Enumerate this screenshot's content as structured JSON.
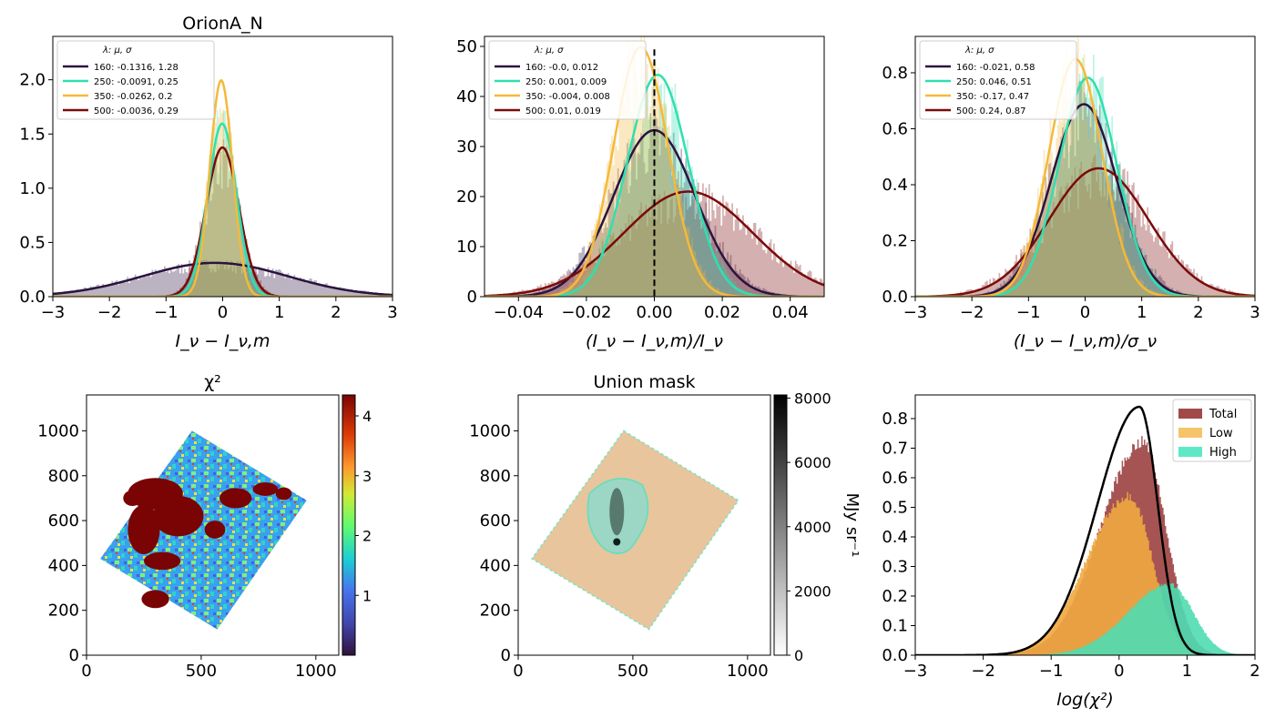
{
  "figure": {
    "panels_title_top_left": "OrionA_N"
  },
  "chart_data": [
    {
      "id": "p1",
      "type": "histogram",
      "title": "OrionA_N",
      "xlabel": "I_ν − I_ν,m",
      "xlim": [
        -3,
        3
      ],
      "ylim": [
        0,
        2.4
      ],
      "xticks": [
        "−3",
        "−2",
        "−1",
        "0",
        "1",
        "2",
        "3"
      ],
      "xtick_values": [
        -3,
        -2,
        -1,
        0,
        1,
        2,
        3
      ],
      "yticks": [
        "0.0",
        "0.5",
        "1.0",
        "1.5",
        "2.0"
      ],
      "ytick_values": [
        0,
        0.5,
        1.0,
        1.5,
        2.0
      ],
      "legend_header": "λ:        μ,        σ",
      "legend": [
        "160: -0.1316,  1.28",
        "250: -0.0091,  0.25",
        "350: -0.0262,  0.2",
        "500: -0.0036,  0.29"
      ],
      "series": [
        {
          "lambda": 160,
          "mu": -0.1316,
          "sigma": 1.28,
          "color": "#2b1340"
        },
        {
          "lambda": 250,
          "mu": -0.0091,
          "sigma": 0.25,
          "color": "#2ee0b0"
        },
        {
          "lambda": 350,
          "mu": -0.0262,
          "sigma": 0.2,
          "color": "#f5b93a"
        },
        {
          "lambda": 500,
          "mu": -0.0036,
          "sigma": 0.29,
          "color": "#7a0a0a"
        }
      ]
    },
    {
      "id": "p2",
      "type": "histogram",
      "title": "",
      "xlabel": "(I_ν − I_ν,m)/I_ν",
      "xlim": [
        -0.05,
        0.05
      ],
      "ylim": [
        0,
        52
      ],
      "xticks": [
        "−0.04",
        "−0.02",
        "0.00",
        "0.02",
        "0.04"
      ],
      "xtick_values": [
        -0.04,
        -0.02,
        0,
        0.02,
        0.04
      ],
      "yticks": [
        "0",
        "10",
        "20",
        "30",
        "40",
        "50"
      ],
      "ytick_values": [
        0,
        10,
        20,
        30,
        40,
        50
      ],
      "vline": 0,
      "legend_header": "λ:        μ,        σ",
      "legend": [
        "160: -0.0,  0.012",
        "250: 0.001,  0.009",
        "350: -0.004,  0.008",
        "500: 0.01,  0.019"
      ],
      "series": [
        {
          "lambda": 160,
          "mu": 0.0,
          "sigma": 0.012,
          "color": "#2b1340"
        },
        {
          "lambda": 250,
          "mu": 0.001,
          "sigma": 0.009,
          "color": "#2ee0b0"
        },
        {
          "lambda": 350,
          "mu": -0.004,
          "sigma": 0.008,
          "color": "#f5b93a"
        },
        {
          "lambda": 500,
          "mu": 0.01,
          "sigma": 0.019,
          "color": "#7a0a0a"
        }
      ]
    },
    {
      "id": "p3",
      "type": "histogram",
      "title": "",
      "xlabel": "(I_ν − I_ν,m)/σ_ν",
      "xlim": [
        -3,
        3
      ],
      "ylim": [
        0,
        0.93
      ],
      "xticks": [
        "−3",
        "−2",
        "−1",
        "0",
        "1",
        "2",
        "3"
      ],
      "xtick_values": [
        -3,
        -2,
        -1,
        0,
        1,
        2,
        3
      ],
      "yticks": [
        "0.0",
        "0.2",
        "0.4",
        "0.6",
        "0.8"
      ],
      "ytick_values": [
        0,
        0.2,
        0.4,
        0.6,
        0.8
      ],
      "legend_header": "λ:        μ,        σ",
      "legend": [
        "160: -0.021,  0.58",
        "250: 0.046,  0.51",
        "350: -0.17,  0.47",
        "500: 0.24,  0.87"
      ],
      "series": [
        {
          "lambda": 160,
          "mu": -0.021,
          "sigma": 0.58,
          "color": "#2b1340"
        },
        {
          "lambda": 250,
          "mu": 0.046,
          "sigma": 0.51,
          "color": "#2ee0b0"
        },
        {
          "lambda": 350,
          "mu": -0.17,
          "sigma": 0.47,
          "color": "#f5b93a"
        },
        {
          "lambda": 500,
          "mu": 0.24,
          "sigma": 0.87,
          "color": "#7a0a0a"
        }
      ]
    },
    {
      "id": "p4",
      "type": "heatmap",
      "title": "χ²",
      "xlim": [
        0,
        1100
      ],
      "ylim": [
        0,
        1160
      ],
      "xticks": [
        "0",
        "500",
        "1000"
      ],
      "xtick_values": [
        0,
        500,
        1000
      ],
      "yticks": [
        "0",
        "200",
        "400",
        "600",
        "800",
        "1000"
      ],
      "ytick_values": [
        0,
        200,
        400,
        600,
        800,
        1000
      ],
      "colorbar": {
        "range": [
          0,
          4.35
        ],
        "ticks": [
          "1",
          "2",
          "3",
          "4"
        ],
        "tick_values": [
          1,
          2,
          3,
          4
        ],
        "cmap": "turbo"
      },
      "footprint": [
        [
          460,
          1000
        ],
        [
          960,
          690
        ],
        [
          570,
          115
        ],
        [
          60,
          430
        ]
      ]
    },
    {
      "id": "p5",
      "type": "heatmap",
      "title": "Union mask",
      "xlim": [
        0,
        1100
      ],
      "ylim": [
        0,
        1160
      ],
      "xticks": [
        "0",
        "500",
        "1000"
      ],
      "xtick_values": [
        0,
        500,
        1000
      ],
      "yticks": [
        "0",
        "200",
        "400",
        "600",
        "800",
        "1000"
      ],
      "ytick_values": [
        0,
        200,
        400,
        600,
        800,
        1000
      ],
      "colorbar": {
        "range": [
          0,
          8100
        ],
        "ticks": [
          "0",
          "2000",
          "4000",
          "6000",
          "8000"
        ],
        "tick_values": [
          0,
          2000,
          4000,
          6000,
          8000
        ],
        "cmap": "gray_r",
        "label": "MJy sr⁻¹"
      },
      "footprint": [
        [
          460,
          1000
        ],
        [
          960,
          690
        ],
        [
          570,
          115
        ],
        [
          60,
          430
        ]
      ]
    },
    {
      "id": "p6",
      "type": "histogram",
      "title": "",
      "xlabel": "log(χ²)",
      "xlim": [
        -3,
        2
      ],
      "ylim": [
        0,
        0.88
      ],
      "xticks": [
        "−3",
        "−2",
        "−1",
        "0",
        "1",
        "2"
      ],
      "xtick_values": [
        -3,
        -2,
        -1,
        0,
        1,
        2
      ],
      "yticks": [
        "0.0",
        "0.1",
        "0.2",
        "0.3",
        "0.4",
        "0.5",
        "0.6",
        "0.7",
        "0.8"
      ],
      "ytick_values": [
        0,
        0.1,
        0.2,
        0.3,
        0.4,
        0.5,
        0.6,
        0.7,
        0.8
      ],
      "legend": [
        "Total",
        "Low",
        "High"
      ],
      "legend_colors": [
        "#a04a4a",
        "#f5c46a",
        "#5ee8c6"
      ],
      "series": [
        {
          "name": "Total",
          "peak_x": 0.35,
          "peak_y": 0.72,
          "color": "#a04a4a"
        },
        {
          "name": "Low",
          "peak_x": 0.15,
          "peak_y": 0.54,
          "color": "#f0a840"
        },
        {
          "name": "High",
          "peak_x": 0.75,
          "peak_y": 0.24,
          "color": "#4fdcb0"
        }
      ],
      "reference_curve": {
        "peak_x": 0.3,
        "peak_y": 0.84,
        "color": "#000000"
      }
    }
  ]
}
